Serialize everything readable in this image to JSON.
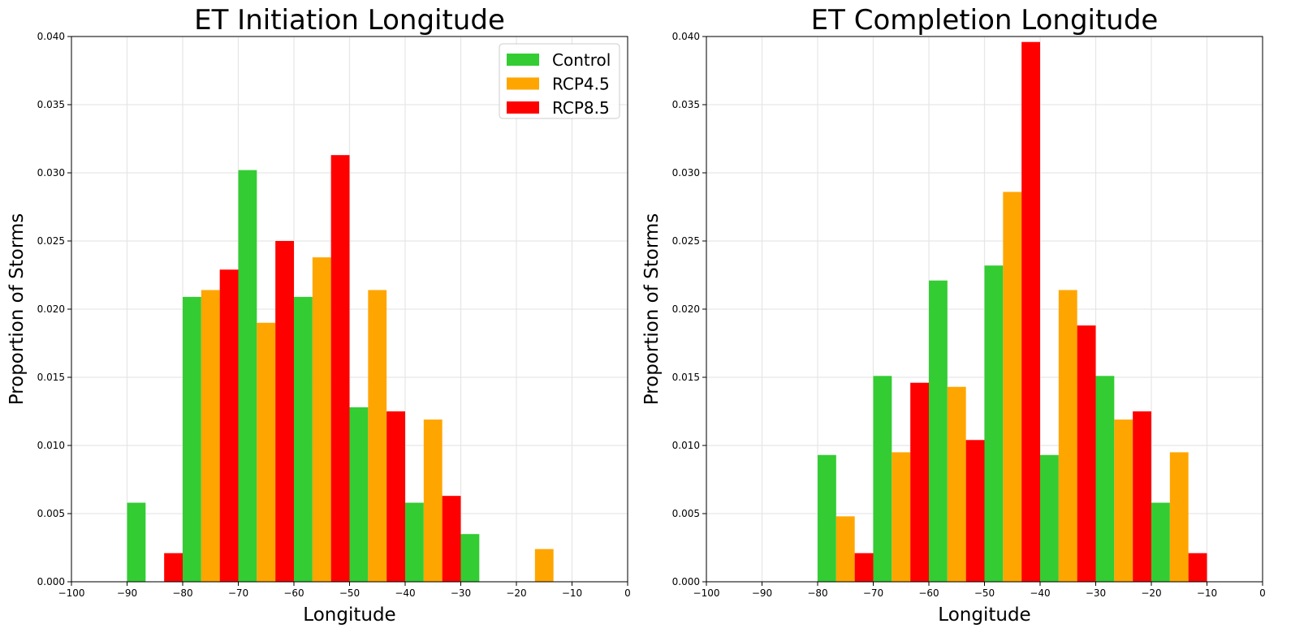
{
  "chart_data": [
    {
      "type": "bar",
      "title": "ET Initiation Longitude",
      "xlabel": "Longitude",
      "ylabel": "Proportion of Storms",
      "xlim": [
        -100,
        0
      ],
      "ylim": [
        0,
        0.04
      ],
      "xticks": [
        "−100",
        "−90",
        "−80",
        "−70",
        "−60",
        "−50",
        "−40",
        "−30",
        "−20",
        "−10",
        "0"
      ],
      "yticks": [
        "0.000",
        "0.005",
        "0.010",
        "0.015",
        "0.020",
        "0.025",
        "0.030",
        "0.035",
        "0.040"
      ],
      "grid": true,
      "legend": "top-right",
      "bin_centers": [
        -85,
        -75,
        -65,
        -55,
        -45,
        -35,
        -25,
        -15
      ],
      "bin_width": 10,
      "series": [
        {
          "name": "Control",
          "color": "#33cc33",
          "values": [
            0.0058,
            0.0209,
            0.0302,
            0.0209,
            0.0128,
            0.0058,
            0.0035,
            0.0
          ]
        },
        {
          "name": "RCP4.5",
          "color": "#ffa500",
          "values": [
            0.0,
            0.0214,
            0.019,
            0.0238,
            0.0214,
            0.0119,
            0.0,
            0.0024
          ]
        },
        {
          "name": "RCP8.5",
          "color": "#ff0000",
          "values": [
            0.0021,
            0.0229,
            0.025,
            0.0313,
            0.0125,
            0.0063,
            0.0,
            0.0
          ]
        }
      ]
    },
    {
      "type": "bar",
      "title": "ET Completion Longitude",
      "xlabel": "Longitude",
      "ylabel": "Proportion of Storms",
      "xlim": [
        -100,
        0
      ],
      "ylim": [
        0,
        0.04
      ],
      "xticks": [
        "−100",
        "−90",
        "−80",
        "−70",
        "−60",
        "−50",
        "−40",
        "−30",
        "−20",
        "−10",
        "0"
      ],
      "yticks": [
        "0.000",
        "0.005",
        "0.010",
        "0.015",
        "0.020",
        "0.025",
        "0.030",
        "0.035",
        "0.040"
      ],
      "grid": true,
      "legend": "",
      "bin_centers": [
        -75,
        -65,
        -55,
        -45,
        -35,
        -25,
        -15
      ],
      "bin_width": 10,
      "series": [
        {
          "name": "Control",
          "color": "#33cc33",
          "values": [
            0.0093,
            0.0151,
            0.0221,
            0.0232,
            0.0093,
            0.0151,
            0.0058
          ]
        },
        {
          "name": "RCP4.5",
          "color": "#ffa500",
          "values": [
            0.0048,
            0.0095,
            0.0143,
            0.0286,
            0.0214,
            0.0119,
            0.0095
          ]
        },
        {
          "name": "RCP8.5",
          "color": "#ff0000",
          "values": [
            0.0021,
            0.0146,
            0.0104,
            0.0396,
            0.0188,
            0.0125,
            0.0021
          ]
        }
      ]
    }
  ]
}
